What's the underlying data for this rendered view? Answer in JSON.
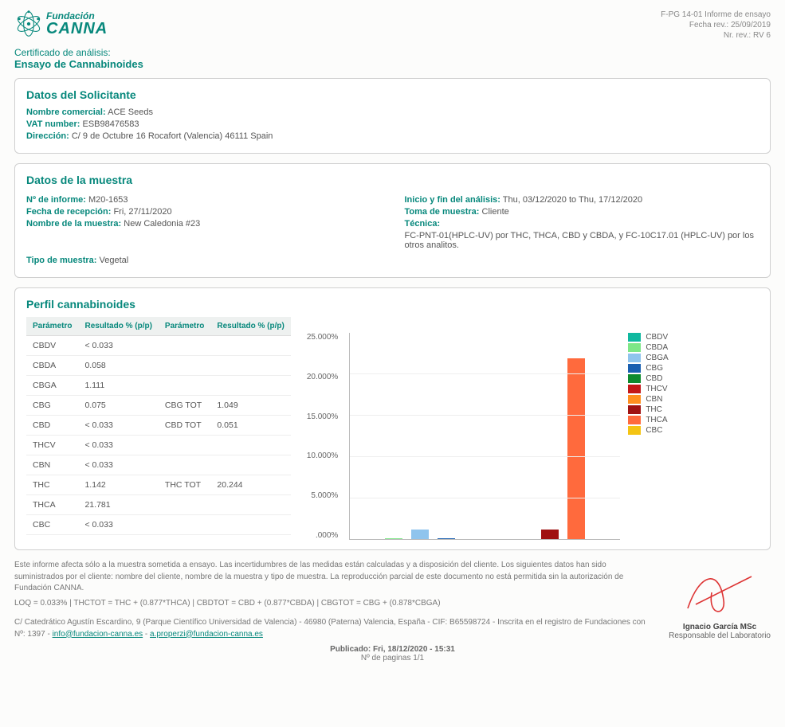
{
  "header": {
    "logo_top": "Fundación",
    "logo_main": "CANNA",
    "doc_code": "F-PG 14-01 Informe de ensayo",
    "doc_date": "Fecha rev.: 25/09/2019",
    "doc_rev": "Nr. rev.: RV 6"
  },
  "cert": {
    "line": "Certificado de análisis:",
    "title": "Ensayo de Cannabinoides"
  },
  "solicitante": {
    "heading": "Datos del Solicitante",
    "nombre_label": "Nombre comercial:",
    "nombre": "ACE Seeds",
    "vat_label": "VAT number:",
    "vat": "ESB98476583",
    "dir_label": "Dirección:",
    "dir": "C/ 9 de Octubre 16 Rocafort (Valencia) 46111 Spain"
  },
  "muestra": {
    "heading": "Datos de la muestra",
    "informe_label": "Nº de informe:",
    "informe": "M20-1653",
    "recepcion_label": "Fecha de recepción:",
    "recepcion": "Fri, 27/11/2020",
    "nombre_label": "Nombre de la muestra:",
    "nombre": "New Caledonia #23",
    "tipo_label": "Tipo de muestra:",
    "tipo": "Vegetal",
    "analisis_label": "Inicio y fin del análisis:",
    "analisis": "Thu, 03/12/2020 to Thu, 17/12/2020",
    "toma_label": "Toma de muestra:",
    "toma": "Cliente",
    "tecnica_label": "Técnica:",
    "tecnica": "FC-PNT-01(HPLC-UV) por THC, THCA, CBD y CBDA, y FC-10C17.01 (HPLC-UV) por los otros analitos."
  },
  "perfil": {
    "heading": "Perfil cannabinoides",
    "col_param": "Parámetro",
    "col_res": "Resultado % (p/p)",
    "rows": [
      {
        "p1": "CBDV",
        "r1": "< 0.033",
        "p2": "",
        "r2": ""
      },
      {
        "p1": "CBDA",
        "r1": "0.058",
        "p2": "",
        "r2": ""
      },
      {
        "p1": "CBGA",
        "r1": "1.111",
        "p2": "",
        "r2": ""
      },
      {
        "p1": "CBG",
        "r1": "0.075",
        "p2": "CBG TOT",
        "r2": "1.049"
      },
      {
        "p1": "CBD",
        "r1": "< 0.033",
        "p2": "CBD TOT",
        "r2": "0.051"
      },
      {
        "p1": "THCV",
        "r1": "< 0.033",
        "p2": "",
        "r2": ""
      },
      {
        "p1": "CBN",
        "r1": "< 0.033",
        "p2": "",
        "r2": ""
      },
      {
        "p1": "THC",
        "r1": "1.142",
        "p2": "THC TOT",
        "r2": "20.244"
      },
      {
        "p1": "THCA",
        "r1": "21.781",
        "p2": "",
        "r2": ""
      },
      {
        "p1": "CBC",
        "r1": "< 0.033",
        "p2": "",
        "r2": ""
      }
    ]
  },
  "chart": {
    "ymax": 25,
    "ticks": [
      "25.000%",
      "20.000%",
      "15.000%",
      "10.000%",
      "5.000%",
      ".000%"
    ],
    "series": [
      {
        "name": "CBDV",
        "value": 0,
        "color": "#0fb89f"
      },
      {
        "name": "CBDA",
        "value": 0.058,
        "color": "#7ee787"
      },
      {
        "name": "CBGA",
        "value": 1.111,
        "color": "#8fc4ed"
      },
      {
        "name": "CBG",
        "value": 0.075,
        "color": "#195fb0"
      },
      {
        "name": "CBD",
        "value": 0,
        "color": "#0d8a2e"
      },
      {
        "name": "THCV",
        "value": 0,
        "color": "#c41818"
      },
      {
        "name": "CBN",
        "value": 0,
        "color": "#ff8f1f"
      },
      {
        "name": "THC",
        "value": 1.142,
        "color": "#a01212"
      },
      {
        "name": "THCA",
        "value": 21.781,
        "color": "#ff6a3d"
      },
      {
        "name": "CBC",
        "value": 0,
        "color": "#f4c414"
      }
    ]
  },
  "footer": {
    "p1": "Este informe afecta sólo a la muestra sometida a ensayo. Las incertidumbres de las medidas están calculadas y a disposición del cliente. Los siguientes datos han sido suministrados por el cliente: nombre del cliente, nombre de la muestra y tipo de muestra. La reproducción parcial de este documento no está permitida sin la autorización de Fundación CANNA.",
    "p2": "LOQ = 0.033% | THCTOT = THC + (0.877*THCA) | CBDTOT = CBD + (0.877*CBDA) | CBGTOT = CBG + (0.878*CBGA)",
    "p3_pre": "C/ Catedrático Agustín Escardino, 9 (Parque Científico Universidad de Valencia) - 46980 (Paterna) Valencia, España - CIF: B65598724 - Inscrita en el registro de Fundaciones con Nº: 1397 - ",
    "email1": "info@fundacion-canna.es",
    "sep": " - ",
    "email2": "a.properzi@fundacion-canna.es",
    "sig_name": "Ignacio García MSc",
    "sig_role": "Responsable del Laboratorio",
    "pub": "Publicado: Fri, 18/12/2020 - 15:31",
    "pages": "Nº de paginas 1/1"
  }
}
